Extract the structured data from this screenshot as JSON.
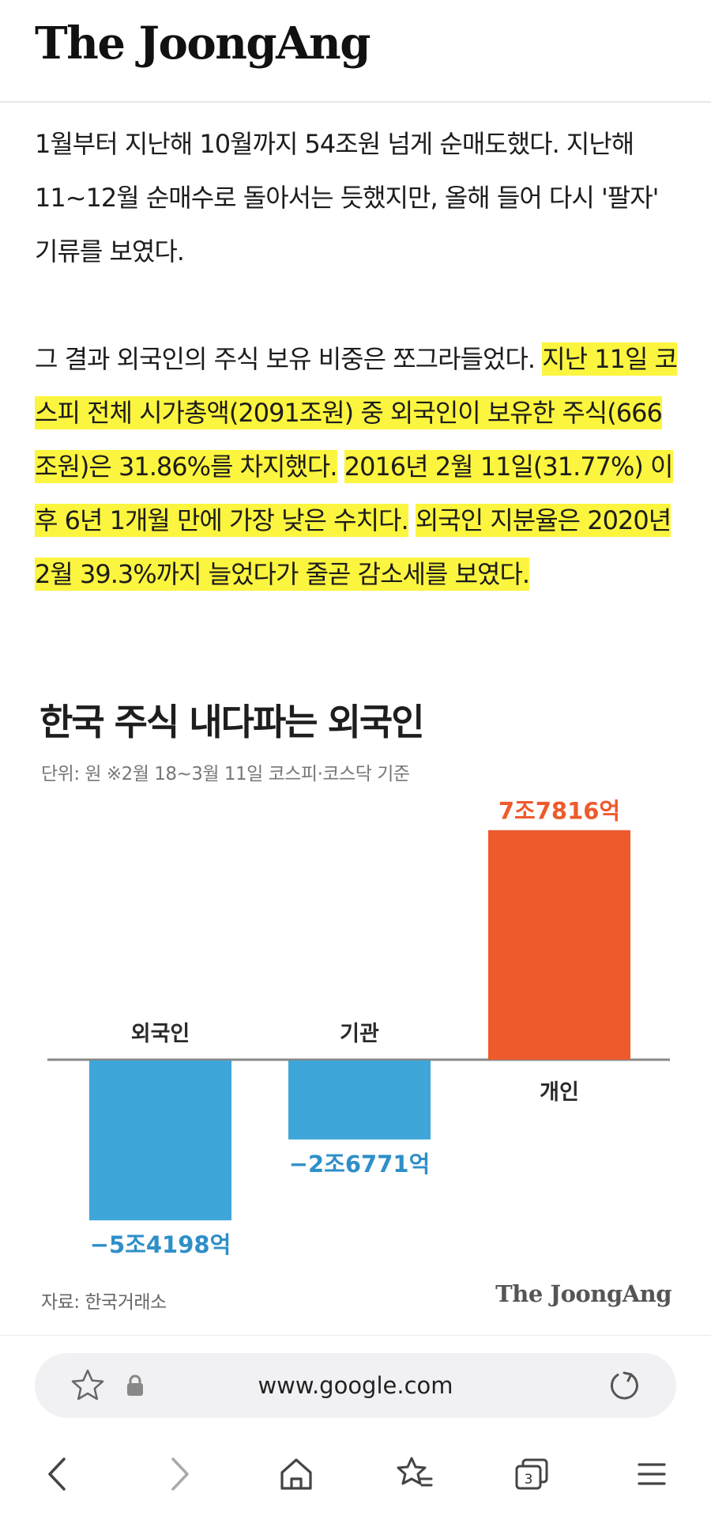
{
  "header": {
    "logo": "The JoongAng"
  },
  "article": {
    "p1": "1월부터 지난해 10월까지 54조원 넘게 순매도했다. 지난해 11~12월 순매수로 돌아서는 듯했지만, 올해 들어 다시 '팔자' 기류를 보였다.",
    "p2_plain": "그 결과 외국인의 주식 보유 비중은 쪼그라들었다. ",
    "p2_hl1": "지난 11일 코스피 전체 시가총액(2091조원) 중 외국인이 보유한 주식(666조원)은 31.86%를 차지했다.",
    "p2_hl2": "2016년 2월 11일(31.77%) 이후 6년 1개월 만에 가장 낮은 수치다.",
    "p2_hl3": "외국인 지분율은 2020년 2월 39.3%까지 늘었다가 줄곧 감소세를 보였다."
  },
  "chart_data": {
    "type": "bar",
    "title": "한국 주식 내다파는 외국인",
    "subtitle": "단위: 원  ※2월 18~3월 11일 코스피·코스닥 기준",
    "categories": [
      "외국인",
      "기관",
      "개인"
    ],
    "values": [
      -54198,
      -26771,
      77816
    ],
    "value_labels": [
      "−5조4198억",
      "−2조6771억",
      "7조7816억"
    ],
    "colors": [
      "#3ea6d8",
      "#3ea6d8",
      "#ee5a2c"
    ],
    "source": "자료: 한국거래소",
    "credit": "The JoongAng"
  },
  "browser": {
    "url": "www.google.com",
    "tab_count": "3",
    "icons": {
      "bookmark": "star-icon",
      "lock": "lock-icon",
      "reload": "reload-icon",
      "back": "back-arrow-icon",
      "forward": "forward-arrow-icon",
      "home": "home-icon",
      "bookmarks": "bookmarks-icon",
      "tabs": "tabs-icon",
      "menu": "menu-icon"
    }
  }
}
